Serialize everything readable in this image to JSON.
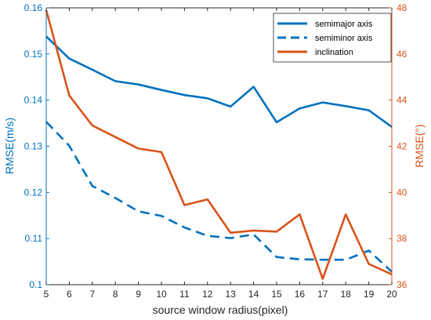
{
  "chart_data": {
    "type": "line",
    "x": [
      5,
      6,
      7,
      8,
      9,
      10,
      11,
      12,
      13,
      14,
      15,
      16,
      17,
      18,
      19,
      20
    ],
    "xlabel": "source window radius(pixel)",
    "xlim": [
      5,
      20
    ],
    "left_axis": {
      "label": "RMSE(m/s)",
      "ylim": [
        0.1,
        0.16
      ],
      "ticks": [
        "0.1",
        "0.11",
        "0.12",
        "0.13",
        "0.14",
        "0.15",
        "0.16"
      ],
      "color": "#0072BD"
    },
    "right_axis": {
      "label": "RMSE(°)",
      "ylim": [
        36,
        48
      ],
      "ticks": [
        "36",
        "38",
        "40",
        "42",
        "44",
        "46",
        "48"
      ],
      "color": "#D95319"
    },
    "x_ticks": [
      "5",
      "6",
      "7",
      "8",
      "9",
      "10",
      "11",
      "12",
      "13",
      "14",
      "15",
      "16",
      "17",
      "18",
      "19",
      "20"
    ],
    "series": [
      {
        "name": "semimajor axis",
        "axis": "left",
        "color": "#0072BD",
        "style": "solid",
        "values": [
          0.1538,
          0.149,
          0.1466,
          0.1441,
          0.1434,
          0.1422,
          0.1411,
          0.1404,
          0.1386,
          0.1429,
          0.1352,
          0.1382,
          0.1395,
          0.1387,
          0.1378,
          0.1342
        ]
      },
      {
        "name": "semiminor axis",
        "axis": "left",
        "color": "#0072BD",
        "style": "dashed",
        "values": [
          0.1353,
          0.1301,
          0.1214,
          0.1188,
          0.1159,
          0.1149,
          0.1124,
          0.1106,
          0.1101,
          0.1109,
          0.106,
          0.1055,
          0.1054,
          0.1054,
          0.1074,
          0.1028
        ]
      },
      {
        "name": "inclination",
        "axis": "right",
        "color": "#D95319",
        "style": "solid",
        "values": [
          47.9,
          44.2,
          42.9,
          42.4,
          41.9,
          41.75,
          39.45,
          39.7,
          38.25,
          38.35,
          38.3,
          39.05,
          36.25,
          39.05,
          36.9,
          36.45
        ]
      }
    ],
    "legend": {
      "placement": "top-right"
    },
    "grid": false
  }
}
